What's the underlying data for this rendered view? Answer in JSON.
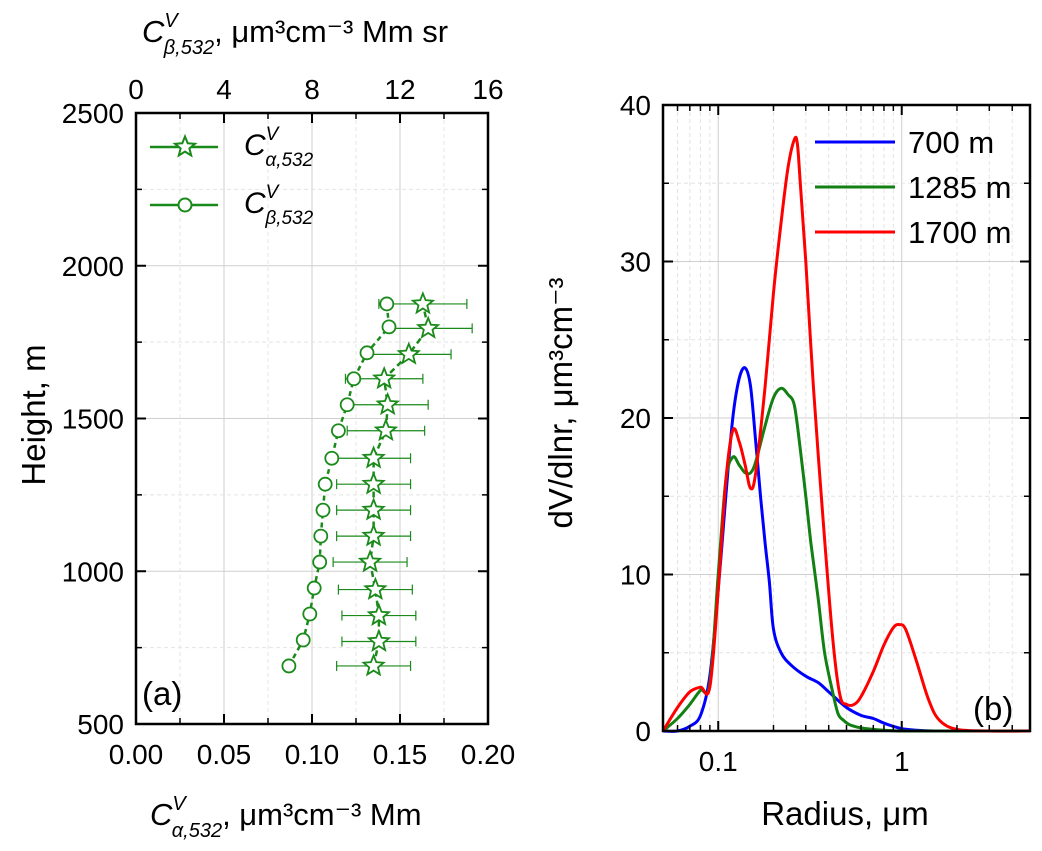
{
  "colors": {
    "green": "#1a8a1a",
    "blue": "#0000ff",
    "dkgreen": "#138013",
    "red": "#ff0000",
    "grid": "#d6d6d6"
  },
  "chart_data": [
    {
      "type": "scatter",
      "panel_label": "(a)",
      "ylabel": "Height, m",
      "xlabel_bottom": {
        "main": "C",
        "sup": "V",
        "sub": "α,532",
        "rest": ", μm³cm⁻³ Mm"
      },
      "xlabel_top": {
        "main": "C",
        "sup": "V",
        "sub": "β,532",
        "rest": ", μm³cm⁻³ Mm sr"
      },
      "ylim": [
        500,
        2500
      ],
      "xlim_bottom": [
        0.0,
        0.2
      ],
      "xlim_top": [
        0,
        16
      ],
      "yticks": [
        500,
        1000,
        1500,
        2000,
        2500
      ],
      "xticks_bottom": [
        "0.00",
        "0.05",
        "0.10",
        "0.15",
        "0.20"
      ],
      "xticks_top": [
        "0",
        "4",
        "8",
        "12",
        "16"
      ],
      "grid": true,
      "legend_position": "top-left",
      "series": [
        {
          "name": {
            "main": "C",
            "sup": "V",
            "sub": "α,532"
          },
          "marker": "star",
          "axis": "bottom",
          "points": [
            {
              "y": 690,
              "x": 0.135,
              "err": 0.021
            },
            {
              "y": 770,
              "x": 0.138,
              "err": 0.021
            },
            {
              "y": 855,
              "x": 0.138,
              "err": 0.021
            },
            {
              "y": 940,
              "x": 0.136,
              "err": 0.021
            },
            {
              "y": 1030,
              "x": 0.133,
              "err": 0.021
            },
            {
              "y": 1115,
              "x": 0.135,
              "err": 0.021
            },
            {
              "y": 1200,
              "x": 0.135,
              "err": 0.021
            },
            {
              "y": 1285,
              "x": 0.135,
              "err": 0.021
            },
            {
              "y": 1370,
              "x": 0.135,
              "err": 0.021
            },
            {
              "y": 1460,
              "x": 0.142,
              "err": 0.022
            },
            {
              "y": 1545,
              "x": 0.143,
              "err": 0.023
            },
            {
              "y": 1630,
              "x": 0.141,
              "err": 0.022
            },
            {
              "y": 1710,
              "x": 0.155,
              "err": 0.024
            },
            {
              "y": 1795,
              "x": 0.166,
              "err": 0.025
            },
            {
              "y": 1875,
              "x": 0.163,
              "err": 0.025
            }
          ]
        },
        {
          "name": {
            "main": "C",
            "sup": "V",
            "sub": "β,532"
          },
          "marker": "circle",
          "axis": "top",
          "points": [
            {
              "y": 690,
              "x": 6.95
            },
            {
              "y": 775,
              "x": 7.6
            },
            {
              "y": 860,
              "x": 7.9
            },
            {
              "y": 945,
              "x": 8.1
            },
            {
              "y": 1030,
              "x": 8.35
            },
            {
              "y": 1115,
              "x": 8.4
            },
            {
              "y": 1200,
              "x": 8.5
            },
            {
              "y": 1285,
              "x": 8.6
            },
            {
              "y": 1370,
              "x": 8.9
            },
            {
              "y": 1460,
              "x": 9.2
            },
            {
              "y": 1545,
              "x": 9.6
            },
            {
              "y": 1630,
              "x": 9.9
            },
            {
              "y": 1715,
              "x": 10.5
            },
            {
              "y": 1800,
              "x": 11.5
            },
            {
              "y": 1875,
              "x": 11.4
            }
          ]
        }
      ]
    },
    {
      "type": "line",
      "panel_label": "(b)",
      "xlabel": "Radius, μm",
      "ylabel": "dV/dlnr, μm³cm⁻³",
      "xscale": "log",
      "xlim": [
        0.05,
        5
      ],
      "ylim": [
        0,
        40
      ],
      "xticks": [
        "0.1",
        "1"
      ],
      "yticks": [
        "0",
        "10",
        "20",
        "30",
        "40"
      ],
      "grid": true,
      "legend_position": "top-right",
      "series": [
        {
          "name": "700 m",
          "color": "blue",
          "x": [
            0.05,
            0.06,
            0.07,
            0.08,
            0.09,
            0.1,
            0.11,
            0.12,
            0.13,
            0.14,
            0.15,
            0.16,
            0.17,
            0.18,
            0.19,
            0.2,
            0.22,
            0.25,
            0.3,
            0.35,
            0.4,
            0.5,
            0.6,
            0.7,
            0.8,
            0.9,
            1.0,
            1.2,
            1.5,
            2.0,
            3.0,
            5.0
          ],
          "y": [
            0,
            0,
            0.3,
            1.0,
            3.5,
            9,
            15,
            20,
            22.5,
            23.2,
            22,
            18.5,
            15,
            12,
            9.5,
            6.5,
            5,
            4.2,
            3.5,
            3.1,
            2.5,
            1.5,
            1.0,
            0.8,
            0.5,
            0.3,
            0.15,
            0.05,
            0,
            0,
            0,
            0
          ]
        },
        {
          "name": "1285 m",
          "color": "dkgreen",
          "x": [
            0.05,
            0.06,
            0.07,
            0.08,
            0.09,
            0.1,
            0.11,
            0.12,
            0.13,
            0.14,
            0.15,
            0.16,
            0.18,
            0.2,
            0.22,
            0.24,
            0.26,
            0.28,
            0.3,
            0.32,
            0.35,
            0.38,
            0.42,
            0.45,
            0.48,
            0.52,
            0.6,
            0.7,
            0.8,
            1.0,
            1.5,
            2.0,
            5.0
          ],
          "y": [
            0,
            0.8,
            1.7,
            2.6,
            3.0,
            10,
            16,
            17.5,
            17.0,
            16.5,
            16.5,
            17.2,
            19.5,
            21.3,
            21.9,
            21.5,
            20.8,
            18,
            15,
            12,
            8.5,
            5,
            2.5,
            1.1,
            0.7,
            0.4,
            0.2,
            0.1,
            0.05,
            0,
            0,
            0,
            0
          ]
        },
        {
          "name": "1700 m",
          "color": "red",
          "x": [
            0.05,
            0.06,
            0.07,
            0.08,
            0.09,
            0.1,
            0.11,
            0.12,
            0.13,
            0.14,
            0.15,
            0.16,
            0.18,
            0.2,
            0.22,
            0.24,
            0.26,
            0.27,
            0.28,
            0.3,
            0.33,
            0.37,
            0.42,
            0.46,
            0.5,
            0.55,
            0.6,
            0.7,
            0.8,
            0.9,
            0.97,
            1.05,
            1.2,
            1.4,
            1.6,
            2.0,
            3.0,
            5.0
          ],
          "y": [
            0,
            1.5,
            2.5,
            2.8,
            2.8,
            9,
            16,
            19.2,
            18.5,
            17,
            15.5,
            16.5,
            22,
            28,
            32.5,
            36,
            37.8,
            37.5,
            35,
            30,
            22,
            14,
            6,
            2.3,
            1.7,
            1.7,
            2.2,
            3.8,
            5.5,
            6.6,
            6.8,
            6.5,
            4.5,
            2.0,
            0.7,
            0.1,
            0,
            0
          ]
        }
      ]
    }
  ]
}
